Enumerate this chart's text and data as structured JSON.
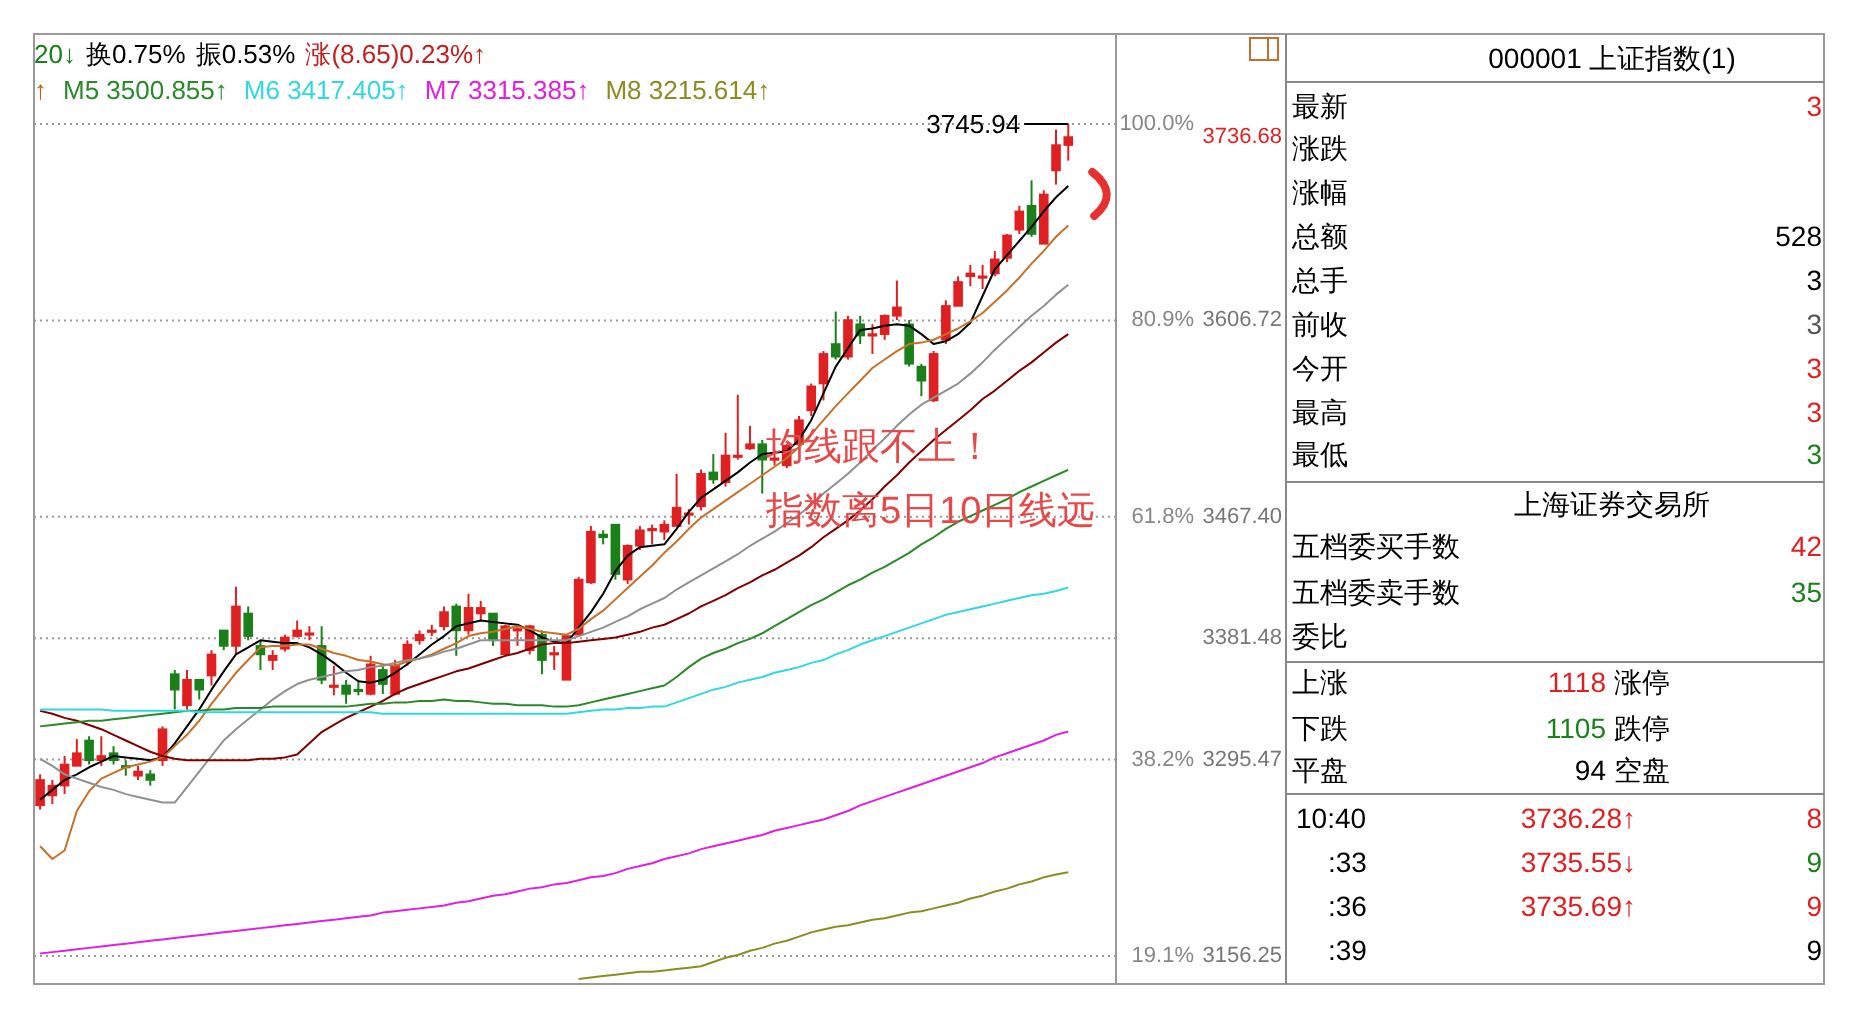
{
  "chart_data": [
    {
      "type": "candlestick",
      "tick_labels": "y",
      "grid": true,
      "categories": [
        null,
        null,
        null,
        null,
        null,
        null,
        null,
        null,
        null,
        null,
        null,
        null,
        null,
        null,
        null,
        null,
        null,
        null,
        null,
        null,
        null,
        null,
        null,
        null,
        null,
        null,
        null,
        null,
        null,
        null,
        null,
        null,
        null,
        null,
        null,
        null,
        null,
        null,
        null,
        null,
        null,
        null,
        null,
        null,
        null,
        null,
        null,
        null,
        null,
        null,
        null,
        null,
        null,
        null,
        null,
        null,
        null,
        null,
        null,
        null,
        null,
        null,
        null,
        null,
        null,
        null,
        null,
        null,
        null,
        null,
        null,
        null,
        null,
        null,
        null,
        null,
        null,
        null,
        null,
        null,
        null,
        null,
        null,
        null,
        null
      ],
      "ylim": [
        3136.4,
        3809.73
      ],
      "yticks": [
        3736.68,
        3606.72,
        {
          "value": 3467.4,
          "label": "3467.40"
        },
        3381.48,
        3295.47,
        3156.25
      ],
      "y2lim": [
        16.38,
        108.75
      ],
      "y2ticks": [
        {
          "value": 100,
          "label": "100.0%"
        },
        {
          "value": 80.9,
          "label": "80.9%"
        },
        {
          "value": 61.8,
          "label": "61.8%"
        },
        {
          "value": 50,
          "label": null
        },
        {
          "value": 38.2,
          "label": "38.2%"
        },
        {
          "value": 19.1,
          "label": "19.1%"
        }
      ],
      "ohlc": [
        [
          3263,
          3285,
          3260,
          3281
        ],
        [
          3270,
          3281,
          3264,
          3277
        ],
        [
          3277,
          3298,
          3271,
          3292
        ],
        [
          3291,
          3310,
          3291,
          3300
        ],
        [
          3309,
          3312,
          3292,
          3295
        ],
        [
          3295,
          3312,
          3291,
          3298
        ],
        [
          3300,
          3305,
          3292,
          3295
        ],
        [
          3291,
          3295,
          3284,
          3290
        ],
        [
          3284,
          3291,
          3281,
          3287
        ],
        [
          3285,
          3288,
          3277,
          3281
        ],
        [
          3295,
          3319,
          3291,
          3317
        ],
        [
          3356,
          3359,
          3331,
          3345
        ],
        [
          3334,
          3359,
          3331,
          3352
        ],
        [
          3352,
          3352,
          3338,
          3345
        ],
        [
          3355,
          3373,
          3348,
          3370
        ],
        [
          3387,
          3387,
          3373,
          3376
        ],
        [
          3376,
          3418,
          3370,
          3404
        ],
        [
          3399,
          3404,
          3380,
          3383
        ],
        [
          3376,
          3380,
          3359,
          3370
        ],
        [
          3366,
          3373,
          3359,
          3369
        ],
        [
          3374,
          3384,
          3372,
          3382
        ],
        [
          3383,
          3394,
          3382,
          3387
        ],
        [
          3384,
          3390,
          3380,
          3385
        ],
        [
          3376,
          3390,
          3349,
          3352
        ],
        [
          3347,
          3362,
          3341,
          3348
        ],
        [
          3348,
          3352,
          3335,
          3342
        ],
        [
          3345,
          3352,
          3341,
          3344
        ],
        [
          3342,
          3369,
          3341,
          3363
        ],
        [
          3359,
          3362,
          3342,
          3349
        ],
        [
          3342,
          3366,
          3341,
          3362
        ],
        [
          3366,
          3380,
          3362,
          3377
        ],
        [
          3380,
          3387,
          3377,
          3384
        ],
        [
          3387,
          3391,
          3383,
          3387
        ],
        [
          3390,
          3404,
          3387,
          3400
        ],
        [
          3404,
          3406,
          3369,
          3387
        ],
        [
          3387,
          3413,
          3384,
          3403
        ],
        [
          3399,
          3408,
          3394,
          3403
        ],
        [
          3399,
          3399,
          3376,
          3380
        ],
        [
          3370,
          3391,
          3369,
          3390
        ],
        [
          3387,
          3391,
          3376,
          3388
        ],
        [
          3373,
          3391,
          3370,
          3390
        ],
        [
          3384,
          3387,
          3356,
          3366
        ],
        [
          3370,
          3376,
          3359,
          3371
        ],
        [
          3352,
          3384,
          3352,
          3383
        ],
        [
          3384,
          3425,
          3383,
          3423
        ],
        [
          3421,
          3461,
          3420,
          3457
        ],
        [
          3455,
          3458,
          3448,
          3453
        ],
        [
          3462,
          3462,
          3423,
          3427
        ],
        [
          3423,
          3448,
          3420,
          3447
        ],
        [
          3447,
          3461,
          3444,
          3458
        ],
        [
          3458,
          3462,
          3448,
          3459
        ],
        [
          3457,
          3465,
          3451,
          3462
        ],
        [
          3461,
          3498,
          3461,
          3474
        ],
        [
          3469,
          3473,
          3462,
          3470
        ],
        [
          3475,
          3501,
          3472,
          3498
        ],
        [
          3499,
          3512,
          3491,
          3494
        ],
        [
          3492,
          3527,
          3489,
          3511
        ],
        [
          3510,
          3554,
          3508,
          3511
        ],
        [
          3516,
          3532,
          3515,
          3519
        ],
        [
          3519,
          3522,
          3484,
          3508
        ],
        [
          3508,
          3515,
          3504,
          3509
        ],
        [
          3504,
          3519,
          3502,
          3518
        ],
        [
          3519,
          3539,
          3517,
          3536
        ],
        [
          3543,
          3562,
          3539,
          3560
        ],
        [
          3562,
          3585,
          3550,
          3583
        ],
        [
          3590,
          3613,
          3579,
          3581
        ],
        [
          3581,
          3610,
          3579,
          3607
        ],
        [
          3604,
          3610,
          3590,
          3596
        ],
        [
          3596,
          3604,
          3583,
          3597
        ],
        [
          3597,
          3611,
          3593,
          3610
        ],
        [
          3610,
          3635,
          3607,
          3616
        ],
        [
          3604,
          3607,
          3574,
          3576
        ],
        [
          3574,
          3576,
          3553,
          3564
        ],
        [
          3550,
          3585,
          3549,
          3583
        ],
        [
          3593,
          3621,
          3590,
          3617
        ],
        [
          3617,
          3638,
          3617,
          3634
        ],
        [
          3638,
          3646,
          3631,
          3640
        ],
        [
          3638,
          3646,
          3629,
          3638
        ],
        [
          3640,
          3656,
          3638,
          3650
        ],
        [
          3651,
          3668,
          3648,
          3667
        ],
        [
          3671,
          3688,
          3668,
          3684
        ],
        [
          3688,
          3706,
          3666,
          3668
        ],
        [
          3661,
          3699,
          3661,
          3696
        ],
        [
          3713,
          3742,
          3703,
          3731
        ],
        [
          3731,
          3745.94,
          3720,
          3736.68
        ]
      ],
      "series": [
        {
          "type": "line",
          "color": "#000000",
          "values": [
            3267,
            3274,
            3281,
            3285,
            3290,
            3294,
            3298,
            3297,
            3296,
            3295,
            3297,
            3307,
            3319,
            3331,
            3345,
            3358,
            3370,
            3375,
            3380,
            3379,
            3378,
            3378,
            3375,
            3370,
            3364,
            3357,
            3351,
            3350,
            3352,
            3357,
            3363,
            3370,
            3377,
            3383,
            3390,
            3392,
            3394,
            3393,
            3392,
            3391,
            3387,
            3382,
            3379,
            3378,
            3389,
            3400,
            3413,
            3429,
            3440,
            3446,
            3447,
            3448,
            3459,
            3471,
            3481,
            3487,
            3493,
            3499,
            3506,
            3512,
            3513,
            3514,
            3522,
            3536,
            3555,
            3574,
            3587,
            3600,
            3601,
            3603,
            3604,
            3603,
            3597,
            3590,
            3592,
            3597,
            3605,
            3624,
            3643,
            3653,
            3663,
            3673,
            3684,
            3694,
            3702
          ]
        },
        {
          "type": "line",
          "color": "#c87028",
          "values": [
            3234,
            3225,
            3231,
            3259,
            3273,
            3282,
            3286,
            3290,
            3292,
            3294,
            3297,
            3305,
            3313,
            3323,
            3335,
            3346,
            3357,
            3366,
            3375,
            3376,
            3376,
            3377,
            3377,
            3374,
            3371,
            3369,
            3366,
            3365,
            3363,
            3362,
            3365,
            3367,
            3370,
            3374,
            3378,
            3383,
            3385,
            3386,
            3388,
            3390,
            3388,
            3386,
            3385,
            3384,
            3388,
            3395,
            3401,
            3409,
            3417,
            3425,
            3433,
            3442,
            3450,
            3459,
            3467,
            3473,
            3479,
            3485,
            3491,
            3497,
            3503,
            3509,
            3517,
            3526,
            3536,
            3546,
            3555,
            3564,
            3573,
            3579,
            3585,
            3590,
            3591,
            3593,
            3597,
            3601,
            3606,
            3612,
            3620,
            3628,
            3637,
            3647,
            3656,
            3666,
            3674
          ]
        },
        {
          "type": "line",
          "color": "#909090",
          "values": [
            3296,
            3291,
            3285,
            3282,
            3279,
            3276,
            3274,
            3271,
            3269,
            3267,
            3265,
            3265,
            3276,
            3287,
            3298,
            3309,
            3317,
            3324,
            3331,
            3338,
            3344,
            3349,
            3352,
            3354,
            3356,
            3358,
            3359,
            3361,
            3362,
            3364,
            3366,
            3367,
            3369,
            3372,
            3374,
            3377,
            3380,
            3380,
            3380,
            3380,
            3380,
            3380,
            3380,
            3380,
            3383,
            3386,
            3389,
            3393,
            3397,
            3402,
            3406,
            3410,
            3416,
            3421,
            3426,
            3431,
            3436,
            3441,
            3447,
            3452,
            3457,
            3463,
            3469,
            3476,
            3484,
            3491,
            3498,
            3506,
            3515,
            3523,
            3532,
            3540,
            3547,
            3552,
            3557,
            3562,
            3569,
            3577,
            3586,
            3594,
            3602,
            3610,
            3617,
            3625,
            3632
          ]
        },
        {
          "type": "line",
          "color": "#800000",
          "values": [
            3330,
            3328,
            3325,
            3323,
            3320,
            3317,
            3313,
            3309,
            3305,
            3301,
            3298,
            3296,
            3295,
            3295,
            3295,
            3295,
            3295,
            3295,
            3296,
            3296,
            3297,
            3299,
            3307,
            3315,
            3320,
            3325,
            3329,
            3333,
            3337,
            3342,
            3346,
            3349,
            3352,
            3355,
            3358,
            3360,
            3363,
            3366,
            3369,
            3371,
            3374,
            3377,
            3378,
            3378,
            3379,
            3380,
            3381,
            3382,
            3384,
            3386,
            3389,
            3391,
            3395,
            3399,
            3404,
            3408,
            3412,
            3417,
            3421,
            3426,
            3430,
            3435,
            3440,
            3446,
            3453,
            3459,
            3465,
            3472,
            3480,
            3489,
            3497,
            3506,
            3514,
            3522,
            3529,
            3536,
            3543,
            3551,
            3557,
            3564,
            3571,
            3577,
            3584,
            3591,
            3597
          ]
        },
        {
          "type": "line",
          "name": "M5 3500.855↑",
          "color": "#2a8a2a",
          "values": [
            3319,
            3320,
            3321,
            3322,
            3323,
            3323,
            3324,
            3325,
            3326,
            3327,
            3328,
            3329,
            3330,
            3330,
            3331,
            3331,
            3332,
            3332,
            3332,
            3333,
            3333,
            3333,
            3333,
            3333,
            3333,
            3333,
            3334,
            3335,
            3335,
            3336,
            3336,
            3337,
            3337,
            3338,
            3337,
            3337,
            3336,
            3335,
            3335,
            3334,
            3334,
            3334,
            3333,
            3333,
            3334,
            3336,
            3338,
            3340,
            3342,
            3344,
            3346,
            3348,
            3354,
            3361,
            3367,
            3371,
            3374,
            3378,
            3381,
            3385,
            3390,
            3395,
            3400,
            3405,
            3409,
            3414,
            3419,
            3423,
            3428,
            3432,
            3437,
            3442,
            3448,
            3453,
            3459,
            3464,
            3468,
            3472,
            3476,
            3480,
            3485,
            3489,
            3493,
            3497,
            3500.855
          ]
        },
        {
          "type": "line",
          "name": "M6 3417.405↑",
          "color": "#30d8e0",
          "values": [
            3331,
            3331,
            3331,
            3331,
            3331,
            3331,
            3330,
            3330,
            3330,
            3330,
            3330,
            3330,
            3330,
            3329,
            3329,
            3329,
            3329,
            3329,
            3329,
            3329,
            3329,
            3329,
            3329,
            3329,
            3329,
            3329,
            3329,
            3329,
            3328,
            3328,
            3328,
            3328,
            3328,
            3328,
            3328,
            3328,
            3328,
            3328,
            3328,
            3328,
            3328,
            3328,
            3328,
            3328,
            3329,
            3330,
            3331,
            3331,
            3332,
            3332,
            3333,
            3333,
            3336,
            3339,
            3342,
            3345,
            3347,
            3350,
            3352,
            3354,
            3357,
            3359,
            3361,
            3364,
            3366,
            3370,
            3373,
            3377,
            3380,
            3383,
            3386,
            3389,
            3392,
            3395,
            3398,
            3400,
            3402,
            3404,
            3406,
            3408,
            3410,
            3412,
            3413,
            3415,
            3417.405
          ]
        },
        {
          "type": "line",
          "name": "M7 3315.385↑",
          "color": "#e020e0",
          "values": [
            3158,
            3159,
            3160,
            3161,
            3162,
            3163,
            3164,
            3165,
            3166,
            3167,
            3168,
            3169,
            3170,
            3171,
            3172,
            3173,
            3174,
            3175,
            3176,
            3177,
            3178,
            3179,
            3180,
            3181,
            3182,
            3183,
            3184,
            3185,
            3187,
            3188,
            3189,
            3190,
            3191,
            3192,
            3194,
            3195,
            3197,
            3199,
            3200,
            3202,
            3204,
            3205,
            3207,
            3208,
            3210,
            3212,
            3213,
            3215,
            3218,
            3220,
            3222,
            3225,
            3227,
            3229,
            3232,
            3234,
            3236,
            3238,
            3240,
            3242,
            3245,
            3247,
            3249,
            3251,
            3253,
            3256,
            3259,
            3263,
            3266,
            3269,
            3272,
            3275,
            3278,
            3281,
            3284,
            3287,
            3290,
            3293,
            3297,
            3300,
            3303,
            3306,
            3309,
            3313,
            3315.385
          ]
        },
        {
          "type": "line",
          "name": "M8 3215.614↑",
          "color": "#8c8c20",
          "values": [
            null,
            null,
            null,
            null,
            null,
            null,
            null,
            null,
            null,
            null,
            null,
            null,
            null,
            null,
            null,
            null,
            null,
            null,
            null,
            null,
            null,
            null,
            null,
            null,
            null,
            null,
            null,
            null,
            null,
            null,
            null,
            null,
            null,
            null,
            null,
            null,
            null,
            null,
            null,
            null,
            null,
            null,
            null,
            null,
            3140,
            3141,
            3142,
            3143,
            3144,
            3145,
            3145,
            3146,
            3147,
            3148,
            3149,
            3152,
            3155,
            3157,
            3160,
            3162,
            3165,
            3167,
            3170,
            3173,
            3175,
            3177,
            3178,
            3180,
            3182,
            3183,
            3185,
            3187,
            3188,
            3190,
            3192,
            3194,
            3197,
            3199,
            3202,
            3204,
            3207,
            3209,
            3212,
            3214,
            3215.614
          ]
        }
      ],
      "annotations": [
        "20↓",
        "换0.75%",
        "振0.53%",
        "涨(8.65)0.23%↑",
        "↑",
        "3745.94",
        "均线跟不上！",
        "指数离5日10日线远"
      ]
    },
    {
      "type": "other",
      "title": "000001 上证指数(1)",
      "subtitle": "上海证券交易所",
      "annotations": [
        "最新",
        "3",
        "涨跌",
        "涨幅",
        "总额",
        "528",
        "总手",
        "3",
        "前收",
        "3",
        "今开",
        "3",
        "最高",
        "3",
        "最低",
        "3",
        "五档委买手数",
        "42",
        "五档委卖手数",
        "35",
        "委比",
        "上涨",
        "1118",
        "涨停",
        "下跌",
        "1105",
        "跌停",
        "平盘",
        "94",
        "空盘",
        "10:40",
        "3736.28↑",
        "8",
        ":33",
        "3735.55↓",
        "9",
        ":36",
        "3735.69↑",
        "9",
        ":39",
        "9"
      ]
    }
  ]
}
